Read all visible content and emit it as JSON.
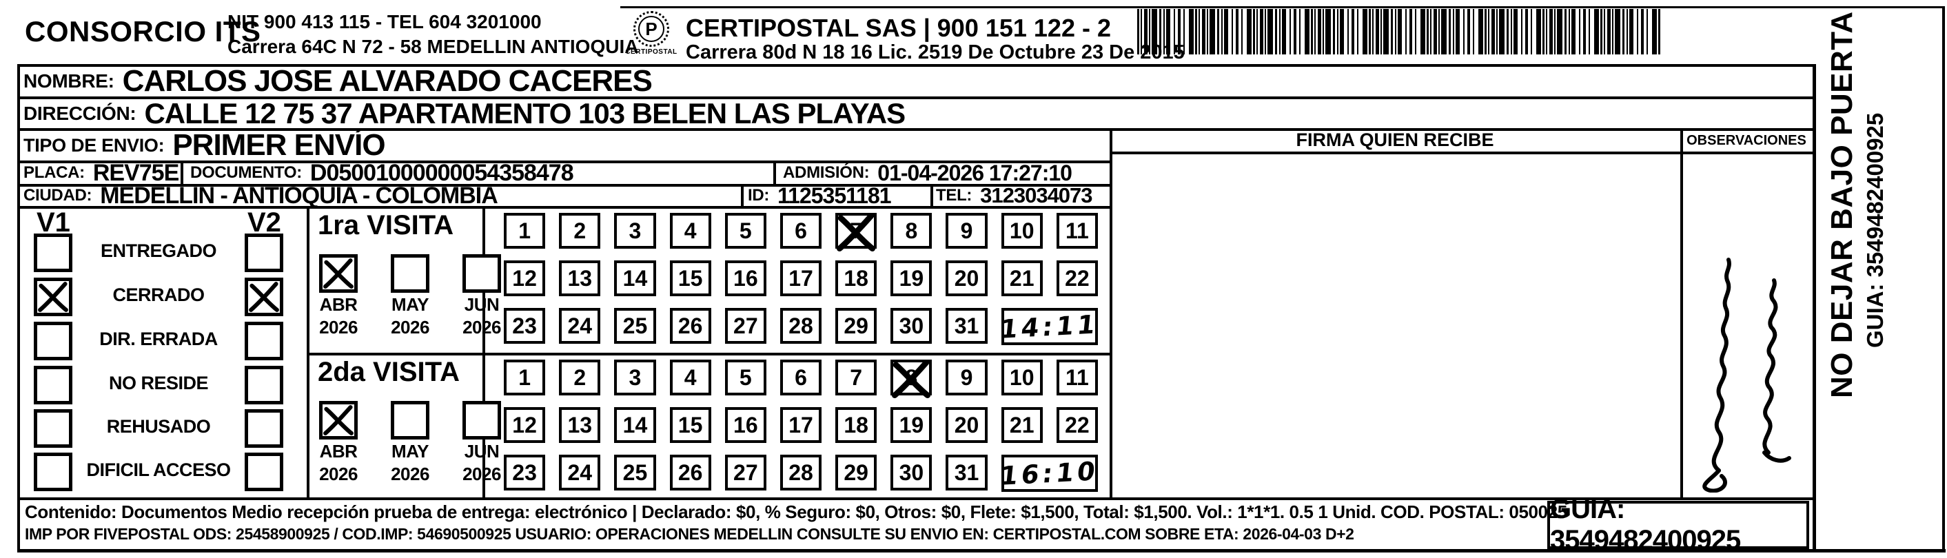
{
  "header": {
    "company": "CONSORCIO ITS",
    "nit_tel": "NIT 900 413 115 - TEL 604 3201000",
    "address": "Carrera 64C N 72 - 58 MEDELLIN ANTIOQUIA",
    "logo_caption": "CERTIPOSTAL",
    "operator": "CERTIPOSTAL SAS | 900 151 122 - 2",
    "operator_address": "Carrera 80d N 18 16  Lic. 2519 De Octubre 23 De 2015"
  },
  "shipment": {
    "nombre_label": "NOMBRE:",
    "nombre": "CARLOS JOSE ALVARADO CACERES",
    "direccion_label": "DIRECCIÓN:",
    "direccion": "CALLE 12 75 37 APARTAMENTO 103 BELEN LAS PLAYAS",
    "tipo_envio_label": "TIPO DE ENVIO:",
    "tipo_envio": "PRIMER ENVÍO",
    "placa_label": "PLACA:",
    "placa": "REV75E",
    "documento_label": "DOCUMENTO:",
    "documento": "D05001000000054358478",
    "admision_label": "ADMISIÓN:",
    "admision": "01-04-2026 17:27:10",
    "ciudad_label": "CIUDAD:",
    "ciudad": "MEDELLIN - ANTIOQUIA - COLOMBIA",
    "id_label": "ID:",
    "id_value": "1125351181",
    "tel_label": "TEL:",
    "tel": "3123034073"
  },
  "status_panel": {
    "col_v1": "V1",
    "col_v2": "V2",
    "rows": [
      {
        "label": "ENTREGADO",
        "v1": false,
        "v2": false
      },
      {
        "label": "CERRADO",
        "v1": true,
        "v2": true
      },
      {
        "label": "DIR. ERRADA",
        "v1": false,
        "v2": false
      },
      {
        "label": "NO RESIDE",
        "v1": false,
        "v2": false
      },
      {
        "label": "REHUSADO",
        "v1": false,
        "v2": false
      },
      {
        "label": "DIFICIL ACCESO",
        "v1": false,
        "v2": false
      }
    ]
  },
  "visits": [
    {
      "title": "1ra VISITA",
      "months": [
        {
          "label": "ABR",
          "year": "2026",
          "checked": true
        },
        {
          "label": "MAY",
          "year": "2026",
          "checked": false
        },
        {
          "label": "JUN",
          "year": "2026",
          "checked": false
        }
      ],
      "day_rows": [
        [
          1,
          2,
          3,
          4,
          5,
          6,
          7,
          8,
          9,
          10,
          11
        ],
        [
          12,
          13,
          14,
          15,
          16,
          17,
          18,
          19,
          20,
          21,
          22
        ],
        [
          23,
          24,
          25,
          26,
          27,
          28,
          29,
          30,
          31
        ]
      ],
      "crossed_day": 7,
      "time": "14:11"
    },
    {
      "title": "2da VISITA",
      "months": [
        {
          "label": "ABR",
          "year": "2026",
          "checked": true
        },
        {
          "label": "MAY",
          "year": "2026",
          "checked": false
        },
        {
          "label": "JUN",
          "year": "2026",
          "checked": false
        }
      ],
      "day_rows": [
        [
          1,
          2,
          3,
          4,
          5,
          6,
          7,
          8,
          9,
          10,
          11
        ],
        [
          12,
          13,
          14,
          15,
          16,
          17,
          18,
          19,
          20,
          21,
          22
        ],
        [
          23,
          24,
          25,
          26,
          27,
          28,
          29,
          30,
          31
        ]
      ],
      "crossed_day": 8,
      "time": "16:10"
    }
  ],
  "firma": {
    "header": "FIRMA QUIEN RECIBE"
  },
  "observaciones": {
    "header": "OBSERVACIONES"
  },
  "side_strip": {
    "line1": "NO DEJAR BAJO PUERTA",
    "line2": "GUIA: 3549482400925"
  },
  "footer": {
    "line1": "Contenido: Documentos Medio recepción prueba de entrega: electrónico | Declarado: $0, % Seguro: $0, Otros: $0, Flete: $1,500, Total: $1,500. Vol.: 1*1*1. 0.5  1 Unid. COD. POSTAL: 050025",
    "line2": "IMP POR FIVEPOSTAL ODS: 25458900925 / COD.IMP: 54690500925 USUARIO: OPERACIONES MEDELLIN CONSULTE SU ENVIO EN: CERTIPOSTAL.COM SOBRE ETA: 2026-04-03 D+2",
    "guia": "GUIA: 3549482400925"
  }
}
